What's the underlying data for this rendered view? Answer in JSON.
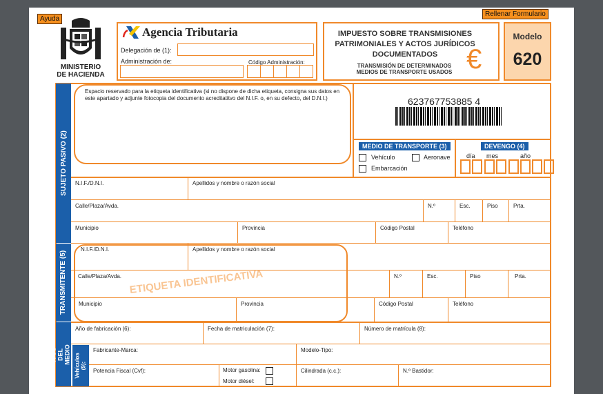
{
  "header": {
    "help_button": "Ayuda",
    "fill_button": "Rellenar Formulario",
    "ministry": [
      "MINISTERIO",
      "DE HACIENDA"
    ],
    "agency": "Agencia Tributaria",
    "delegacion_label": "Delegación de (1):",
    "administracion_label": "Administración de:",
    "codigo_label": "Código Administración:",
    "title_lines": [
      "IMPUESTO SOBRE TRANSMISIONES",
      "PATRIMONIALES Y ACTOS JURÍDICOS",
      "DOCUMENTADOS"
    ],
    "subtitle_lines": [
      "TRANSMISIÓN DE DETERMINADOS",
      "MEDIOS DE TRANSPORTE USADOS"
    ],
    "modelo_label": "Modelo",
    "modelo_number": "620",
    "euro_symbol": "€"
  },
  "colors": {
    "orange": "#f0892a",
    "blue": "#1b5faa",
    "button": "#f7901e",
    "modelo_bg": "#fcd6ad"
  },
  "sujeto": {
    "band": "SUJETO PASIVO (2)",
    "etiqueta_text": "Espacio reservado para la etiqueta identificativa (si no dispone de dicha etiqueta, consigna sus datos en este apartado y adjunte fotocopia del documento acreditatitvo del N.I.F. o, en su defecto, del D.N.I.)",
    "barcode_number": "623767753885 4",
    "medio_title": "MEDIO DE TRANSPORTE (3)",
    "medio_options": [
      "Vehículo",
      "Aeronave",
      "Embarcación"
    ],
    "devengo_title": "DEVENGO (4)",
    "devengo_labels": [
      "día",
      "mes",
      "año"
    ],
    "nif": "N.I.F./D.N.I.",
    "apellidos": "Apellidos y nombre o razón social",
    "calle": "Calle/Plaza/Avda.",
    "numero": "N.º",
    "esc": "Esc.",
    "piso": "Piso",
    "prta": "Prta.",
    "municipio": "Municipio",
    "provincia": "Provincia",
    "cp": "Código Postal",
    "telefono": "Teléfono"
  },
  "transmitente": {
    "band": "TRANSMITENTE (5)",
    "watermark": "ETIQUETA IDENTIFICATIVA",
    "nif": "N.I.F./D.N.I.",
    "apellidos": "Apellidos y nombre o razón social",
    "calle": "Calle/Plaza/Avda.",
    "numero": "N.º",
    "esc": "Esc.",
    "piso": "Piso",
    "prta": "Prta.",
    "municipio": "Municipio",
    "provincia": "Provincia",
    "cp": "Código Postal",
    "telefono": "Teléfono"
  },
  "vehiculo": {
    "band": "IVOS DEL MEDIO PORTE",
    "sub_band": "Vehículos (9):",
    "anio": "Año de fabricación (6):",
    "fecha": "Fecha de matriculación (7):",
    "matricula": "Número de matrícula (8):",
    "fabricante": "Fabricante-Marca:",
    "modelo": "Modelo-Tipo:",
    "potencia": "Potencia Fiscal (Cvf):",
    "gasolina": "Motor gasolina:",
    "diesel": "Motor diésel:",
    "cilindrada": "Cilindrada (c.c.):",
    "bastidor": "N.º Bastidor:"
  }
}
